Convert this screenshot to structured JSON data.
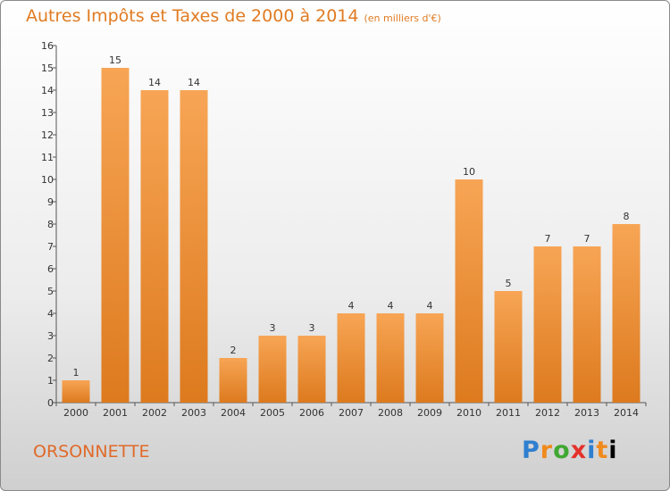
{
  "title": "Autres Impôts et Taxes de 2000 à 2014",
  "subtitle": "(en milliers d'€)",
  "commune": "ORSONNETTE",
  "logo": [
    "P",
    "r",
    "o",
    "x",
    "i",
    "t",
    "i"
  ],
  "colors": {
    "bar_light": "#f7a555",
    "bar_dark": "#dd7a1e",
    "title": "#e07b22",
    "commune": "#e06a2a"
  },
  "chart_data": {
    "type": "bar",
    "categories": [
      "2000",
      "2001",
      "2002",
      "2003",
      "2004",
      "2005",
      "2006",
      "2007",
      "2008",
      "2009",
      "2010",
      "2011",
      "2012",
      "2013",
      "2014"
    ],
    "values": [
      1,
      15,
      14,
      14,
      2,
      3,
      3,
      4,
      4,
      4,
      10,
      5,
      7,
      7,
      8
    ],
    "data_labels": [
      "1",
      "15",
      "14",
      "14",
      "2",
      "3",
      "3",
      "4",
      "4",
      "4",
      "10",
      "5",
      "7",
      "7",
      "8"
    ],
    "ylim": [
      0,
      16
    ],
    "yticks": [
      "0",
      "1",
      "2",
      "3",
      "4",
      "5",
      "6",
      "7",
      "8",
      "9",
      "10",
      "11",
      "12",
      "13",
      "14",
      "15",
      "16"
    ],
    "grid": false
  }
}
